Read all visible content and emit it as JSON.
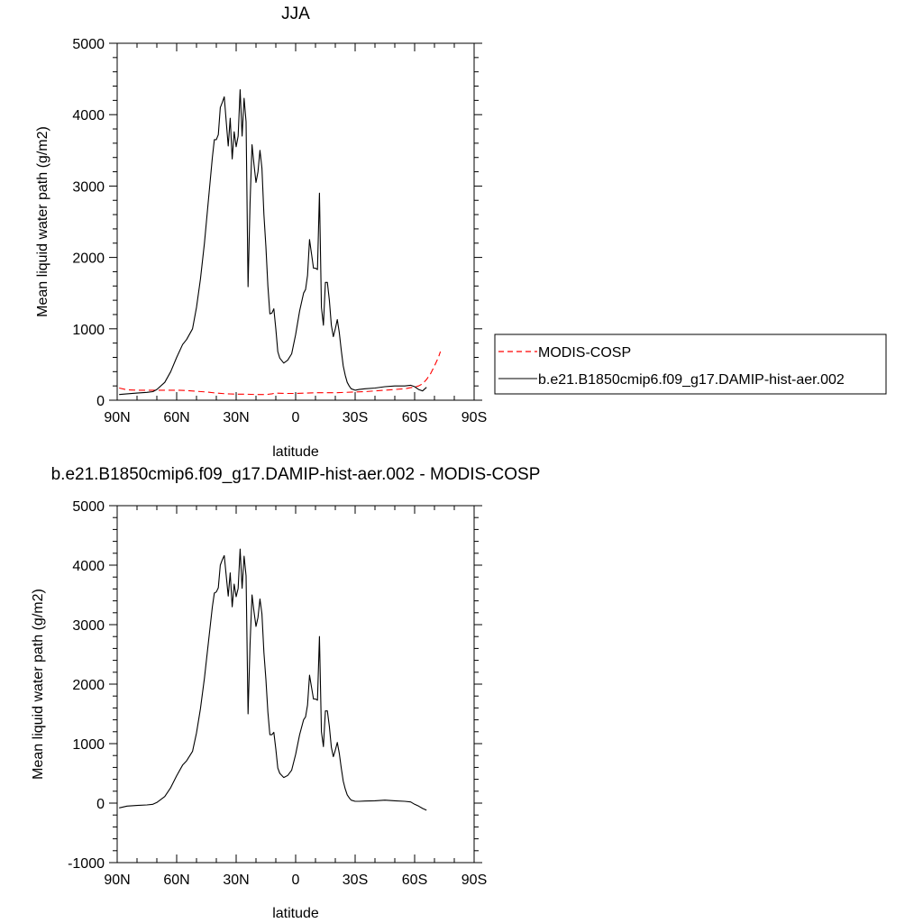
{
  "chart_data": [
    {
      "type": "line",
      "title": "JJA",
      "xlabel": "latitude",
      "ylabel": "Mean liquid water path (g/m2)",
      "xlim": [
        90,
        -90
      ],
      "ylim": [
        0,
        5000
      ],
      "x_ticks": [
        90,
        60,
        30,
        0,
        -30,
        -60,
        -90
      ],
      "x_tick_labels": [
        "90N",
        "60N",
        "30N",
        "0",
        "30S",
        "60S",
        "90S"
      ],
      "y_ticks": [
        0,
        1000,
        2000,
        3000,
        4000,
        5000
      ],
      "y_tick_labels": [
        "0",
        "1000",
        "2000",
        "3000",
        "4000",
        "5000"
      ],
      "legend_position": "right",
      "series": [
        {
          "name": "MODIS-COSP",
          "color": "#ff0000",
          "dash": "dashed",
          "x": [
            89,
            85,
            80,
            75,
            70,
            65,
            60,
            55,
            50,
            45,
            40,
            35,
            30,
            25,
            20,
            15,
            12,
            10,
            5,
            0,
            -5,
            -10,
            -15,
            -20,
            -25,
            -30,
            -35,
            -40,
            -45,
            -50,
            -55,
            -58,
            -60,
            -62,
            -64,
            -66,
            -68,
            -70,
            -72,
            -73
          ],
          "y": [
            170,
            145,
            140,
            140,
            140,
            140,
            140,
            135,
            125,
            115,
            100,
            90,
            85,
            85,
            80,
            80,
            90,
            100,
            95,
            95,
            100,
            105,
            105,
            105,
            110,
            115,
            120,
            130,
            140,
            150,
            160,
            175,
            185,
            200,
            230,
            290,
            370,
            480,
            600,
            680
          ]
        },
        {
          "name": "b.e21.B1850cmip6.f09_g17.DAMIP-hist-aer.002",
          "color": "#000000",
          "dash": "solid",
          "x": [
            89,
            85,
            80,
            75,
            72,
            70,
            66,
            63,
            60,
            57,
            55,
            52,
            50,
            48,
            46,
            45,
            44,
            43,
            42,
            41,
            40,
            39,
            38,
            37,
            36,
            35,
            34,
            33,
            32,
            31,
            30,
            29,
            28,
            27,
            26,
            25,
            24,
            23,
            22,
            21,
            20,
            19,
            18,
            17,
            16,
            15,
            14,
            13,
            12,
            11,
            10,
            9,
            8,
            6,
            4,
            2,
            0,
            -2,
            -4,
            -5,
            -6,
            -7,
            -8,
            -9,
            -10,
            -11,
            -12,
            -13,
            -14,
            -15,
            -16,
            -17,
            -18,
            -19,
            -20,
            -21,
            -22,
            -23,
            -24,
            -25,
            -26,
            -27,
            -28,
            -30,
            -32,
            -35,
            -40,
            -45,
            -50,
            -55,
            -58,
            -60,
            -62,
            -64,
            -66
          ],
          "y": [
            80,
            90,
            100,
            110,
            120,
            150,
            250,
            400,
            600,
            780,
            850,
            1000,
            1300,
            1700,
            2200,
            2500,
            2800,
            3100,
            3400,
            3650,
            3650,
            3720,
            4100,
            4170,
            4250,
            3900,
            3560,
            3950,
            3380,
            3760,
            3550,
            3700,
            4350,
            3700,
            4230,
            3900,
            1590,
            2750,
            3580,
            3300,
            3050,
            3200,
            3500,
            3250,
            2600,
            2150,
            1600,
            1210,
            1220,
            1280,
            1000,
            680,
            590,
            520,
            560,
            650,
            920,
            1250,
            1500,
            1550,
            1750,
            2250,
            2050,
            1850,
            1850,
            1830,
            2900,
            1300,
            1050,
            1650,
            1650,
            1400,
            1050,
            890,
            1000,
            1130,
            950,
            700,
            480,
            350,
            250,
            200,
            160,
            140,
            150,
            160,
            170,
            190,
            200,
            200,
            210,
            190,
            150,
            130,
            180
          ]
        }
      ]
    },
    {
      "type": "line",
      "title": "b.e21.B1850cmip6.f09_g17.DAMIP-hist-aer.002 - MODIS-COSP",
      "xlabel": "latitude",
      "ylabel": "Mean liquid water path (g/m2)",
      "xlim": [
        90,
        -90
      ],
      "ylim": [
        -1000,
        5000
      ],
      "x_ticks": [
        90,
        60,
        30,
        0,
        -30,
        -60,
        -90
      ],
      "x_tick_labels": [
        "90N",
        "60N",
        "30N",
        "0",
        "30S",
        "60S",
        "90S"
      ],
      "y_ticks": [
        -1000,
        0,
        1000,
        2000,
        3000,
        4000,
        5000
      ],
      "y_tick_labels": [
        "-1000",
        "0",
        "1000",
        "2000",
        "3000",
        "4000",
        "5000"
      ],
      "series": [
        {
          "color": "#000000",
          "dash": "solid",
          "x": [
            89,
            85,
            80,
            75,
            72,
            70,
            66,
            63,
            60,
            57,
            55,
            52,
            50,
            48,
            46,
            45,
            44,
            43,
            42,
            41,
            40,
            39,
            38,
            37,
            36,
            35,
            34,
            33,
            32,
            31,
            30,
            29,
            28,
            27,
            26,
            25,
            24,
            23,
            22,
            21,
            20,
            19,
            18,
            17,
            16,
            15,
            14,
            13,
            12,
            11,
            10,
            9,
            8,
            6,
            4,
            2,
            0,
            -2,
            -4,
            -5,
            -6,
            -7,
            -8,
            -9,
            -10,
            -11,
            -12,
            -13,
            -14,
            -15,
            -16,
            -17,
            -18,
            -19,
            -20,
            -21,
            -22,
            -23,
            -24,
            -25,
            -26,
            -27,
            -28,
            -30,
            -32,
            -35,
            -40,
            -45,
            -50,
            -55,
            -58,
            -60,
            -62,
            -64,
            -66
          ],
          "y": [
            -80,
            -50,
            -40,
            -30,
            -20,
            10,
            110,
            260,
            460,
            640,
            710,
            870,
            1180,
            1590,
            2100,
            2400,
            2700,
            3000,
            3300,
            3530,
            3550,
            3620,
            4000,
            4090,
            4160,
            3820,
            3480,
            3870,
            3300,
            3680,
            3470,
            3610,
            4270,
            3610,
            4150,
            3820,
            1500,
            2660,
            3500,
            3220,
            2970,
            3120,
            3430,
            3180,
            2530,
            2080,
            1530,
            1150,
            1150,
            1190,
            910,
            590,
            500,
            430,
            465,
            555,
            820,
            1150,
            1400,
            1450,
            1650,
            2150,
            1950,
            1750,
            1750,
            1730,
            2800,
            1200,
            950,
            1550,
            1550,
            1290,
            940,
            780,
            890,
            1020,
            840,
            590,
            370,
            240,
            140,
            90,
            50,
            30,
            30,
            35,
            40,
            50,
            40,
            30,
            20,
            -20,
            -50,
            -90,
            -120
          ]
        }
      ]
    }
  ]
}
